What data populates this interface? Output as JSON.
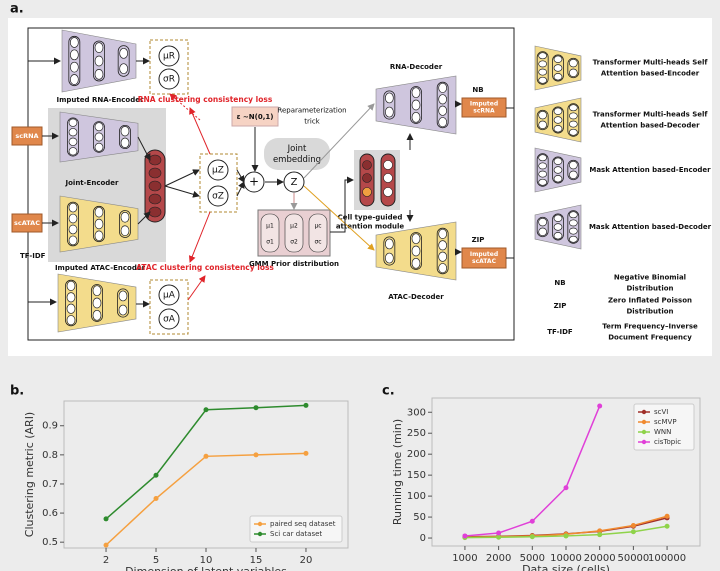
{
  "diagram": {
    "panel_label": "a.",
    "rna_encoder": "Imputed RNA-Encoder",
    "rna_loss": "RNA clustering consistency loss",
    "atac_encoder": "Imputed ATAC-Encoder",
    "atac_loss": "ATAC clustering consistency loss",
    "joint_encoder": "Joint-Encoder",
    "scrna": "scRNA",
    "scatac": "scATAC",
    "tfidf": "TF-IDF",
    "mu_r": "μR",
    "sigma_r": "σR",
    "mu_z": "μZ",
    "sigma_z": "σZ",
    "mu_a": "μA",
    "sigma_a": "σA",
    "plus": "+",
    "z": "Z",
    "epsilon": "ε ~N(0,1)",
    "reparam": [
      "Reparameterization",
      "trick"
    ],
    "joint_embedding": [
      "Joint",
      "embedding"
    ],
    "gmm": "GMM Prior distribution",
    "gmm_cells": [
      "μ1",
      "μ2",
      "μc",
      "σ1",
      "σ2",
      "σc"
    ],
    "cell_attention": [
      "Cell type-guided",
      "attention module"
    ],
    "rna_decoder": "RNA-Decoder",
    "nb": "NB",
    "imputed_scrna": [
      "Imputed",
      "scRNA"
    ],
    "atac_decoder": "ATAC-Decoder",
    "zip": "ZIP",
    "imputed_scatac": [
      "Imputed",
      "scATAC"
    ],
    "legend": [
      [
        "Transformer Multi-heads Self",
        "Attention based-Encoder"
      ],
      [
        "Transformer Multi-heads Self",
        "Attention based-Decoder"
      ],
      [
        "Mask Attention based-Encoder"
      ],
      [
        "Mask Attention based-Decoder"
      ]
    ],
    "abbreviations": [
      {
        "term": "NB",
        "meaning": [
          "Negative Binomial",
          "Distribution"
        ]
      },
      {
        "term": "ZIP",
        "meaning": [
          "Zero Inflated Poisson",
          "Distribution"
        ]
      },
      {
        "term": "TF-IDF",
        "meaning": [
          "Term Frequency–Inverse",
          "Document Frequency"
        ]
      }
    ]
  },
  "chart_data": [
    {
      "type": "line",
      "panel_label": "b.",
      "xlabel": "Dimension of latent variables",
      "ylabel": "Clustering metric (ARI)",
      "categories": [
        "2",
        "5",
        "10",
        "15",
        "20"
      ],
      "ylim": [
        0.48,
        0.985
      ],
      "yticks": [
        0.5,
        0.6,
        0.7,
        0.8,
        0.9
      ],
      "grid": false,
      "legend": "lower right",
      "series": [
        {
          "name": "paired seq dataset",
          "color": "#f5a040",
          "values": [
            0.49,
            0.65,
            0.795,
            0.8,
            0.805
          ]
        },
        {
          "name": "Sci car dataset",
          "color": "#2e8b2e",
          "values": [
            0.58,
            0.73,
            0.955,
            0.962,
            0.97
          ]
        }
      ]
    },
    {
      "type": "line",
      "panel_label": "c.",
      "xlabel": "Data size (cells)",
      "ylabel": "Running time (min)",
      "categories": [
        "1000",
        "2000",
        "5000",
        "10000",
        "20000",
        "50000",
        "100000"
      ],
      "ylim": [
        -19,
        334
      ],
      "yticks": [
        0,
        50,
        100,
        150,
        200,
        250,
        300
      ],
      "grid": false,
      "legend": "upper right",
      "series": [
        {
          "name": "scVI",
          "color": "#a0302a",
          "values": [
            3,
            4,
            6,
            10,
            16,
            28,
            48
          ]
        },
        {
          "name": "scMVP",
          "color": "#f08a30",
          "values": [
            2,
            3,
            5,
            9,
            17,
            30,
            52
          ]
        },
        {
          "name": "WNN",
          "color": "#8fd34a",
          "values": [
            1,
            2,
            3,
            5,
            8,
            15,
            28
          ]
        },
        {
          "name": "cisTopic",
          "color": "#e040d8",
          "values": [
            5,
            12,
            40,
            120,
            315,
            null,
            null
          ]
        }
      ]
    }
  ]
}
